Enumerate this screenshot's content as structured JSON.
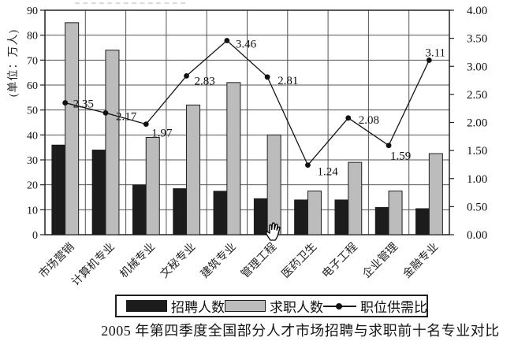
{
  "title": "2005 年第四季度全国部分人才市场招聘与求职前十名专业对比",
  "y_axis_unit": "(单位：万人)",
  "legend": {
    "position": "bottom",
    "items": [
      {
        "label": "招聘人数",
        "swatch": "black-bar"
      },
      {
        "label": "求职人数",
        "swatch": "gray-bar"
      },
      {
        "label": "职位供需比",
        "swatch": "line-with-marker"
      }
    ]
  },
  "cursor": {
    "type": "hand-cursor"
  },
  "colors": {
    "bar_recruitment": "#1c1c1c",
    "bar_jobseekers": "#bcbcbc",
    "bar_border": "#1f1f1f",
    "line": "#161616",
    "grid": "#555555",
    "frame": "#222222",
    "text": "#111111"
  },
  "chart_data": {
    "type": "bar",
    "combo": "bar+line",
    "title": "2005 年第四季度全国部分人才市场招聘与求职前十名专业对比",
    "categories": [
      "市场营销",
      "计算机专业",
      "机械专业",
      "文秘专业",
      "建筑专业",
      "管理工程",
      "医药卫生",
      "电子工程",
      "企业管理",
      "金融专业"
    ],
    "series": [
      {
        "name": "招聘人数",
        "chart": "bar",
        "color": "#1c1c1c",
        "values": [
          36,
          34,
          20,
          18.5,
          17.5,
          14.5,
          14,
          14,
          11,
          10.5
        ]
      },
      {
        "name": "求职人数",
        "chart": "bar",
        "color": "#bcbcbc",
        "values": [
          85,
          74,
          39,
          52,
          61,
          40,
          17.5,
          29,
          17.5,
          32.5
        ]
      },
      {
        "name": "职位供需比",
        "chart": "line",
        "axis": "right",
        "color": "#161616",
        "values": [
          2.35,
          2.17,
          1.97,
          2.83,
          3.46,
          2.81,
          1.24,
          2.08,
          1.59,
          3.11
        ],
        "labels": [
          "2.35",
          "2.17",
          "1.97",
          "2.83",
          "3.46",
          "2.81",
          "1.24",
          "2.08",
          "1.59",
          "3.11"
        ],
        "label_offsets": [
          [
            10,
            6
          ],
          [
            13,
            9
          ],
          [
            7,
            16
          ],
          [
            10,
            11
          ],
          [
            11,
            9
          ],
          [
            13,
            9
          ],
          [
            12,
            13
          ],
          [
            13,
            7
          ],
          [
            2,
            18
          ],
          [
            -5,
            -5
          ]
        ]
      }
    ],
    "left_axis": {
      "title": "(单位：万人)",
      "min": 0,
      "max": 90,
      "ticks": [
        "0",
        "10",
        "20",
        "30",
        "40",
        "50",
        "60",
        "70",
        "80",
        "90"
      ]
    },
    "right_axis": {
      "min": 0,
      "max": 4,
      "ticks": [
        "0.00",
        "0.50",
        "1.00",
        "1.50",
        "2.00",
        "2.50",
        "3.00",
        "3.50",
        "4.00"
      ]
    },
    "grid": {
      "horizontal": true,
      "vertical": true
    },
    "legend_position": "bottom"
  }
}
